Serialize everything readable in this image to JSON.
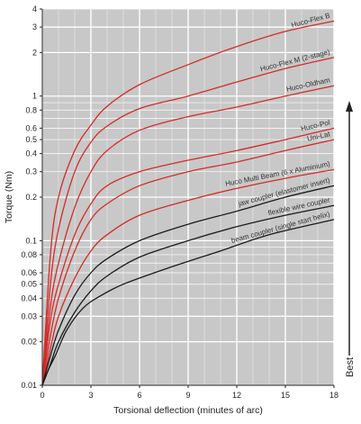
{
  "chart_data": {
    "type": "line",
    "xlabel": "Torsional deflection (minutes of arc)",
    "ylabel": "Torque (Nm)",
    "xlim": [
      0,
      18
    ],
    "ylim": [
      0.01,
      4
    ],
    "yscale": "log",
    "grid": true,
    "x_ticks": [
      0,
      3,
      6,
      9,
      12,
      15,
      18
    ],
    "y_ticks": [
      {
        "value": 0.01,
        "label": "0.01"
      },
      {
        "value": 0.02,
        "label": "0.02"
      },
      {
        "value": 0.03,
        "label": "0.03"
      },
      {
        "value": 0.04,
        "label": "0.04"
      },
      {
        "value": 0.05,
        "label": "0.05"
      },
      {
        "value": 0.06,
        "label": "0.06"
      },
      {
        "value": 0.08,
        "label": "0.08"
      },
      {
        "value": 0.1,
        "label": "0.1"
      },
      {
        "value": 0.2,
        "label": "0.2"
      },
      {
        "value": 0.3,
        "label": "0.3"
      },
      {
        "value": 0.4,
        "label": "0.4"
      },
      {
        "value": 0.5,
        "label": "0.5"
      },
      {
        "value": 0.6,
        "label": "0.6"
      },
      {
        "value": 0.8,
        "label": "0.8"
      },
      {
        "value": 1,
        "label": "1"
      },
      {
        "value": 2,
        "label": "2"
      },
      {
        "value": 3,
        "label": "3"
      },
      {
        "value": 4,
        "label": "4"
      }
    ],
    "annotation": "Best",
    "colors": {
      "red": "#d42a26",
      "black": "#1a1a1a",
      "grid": "#ffffff",
      "background": "#c8c8c8"
    },
    "series": [
      {
        "name": "Huco-Flex B",
        "color": "#d42a26",
        "x": [
          0,
          0.5,
          1,
          2,
          3,
          4,
          6,
          9,
          12,
          15,
          18
        ],
        "y": [
          0.01,
          0.08,
          0.2,
          0.42,
          0.63,
          0.85,
          1.2,
          1.65,
          2.2,
          2.8,
          3.3
        ]
      },
      {
        "name": "Huco-Flex M (2-stage)",
        "color": "#d42a26",
        "x": [
          0,
          0.5,
          1,
          2,
          3,
          4,
          6,
          9,
          12,
          15,
          18
        ],
        "y": [
          0.01,
          0.05,
          0.12,
          0.3,
          0.48,
          0.62,
          0.82,
          1.0,
          1.25,
          1.55,
          1.85
        ]
      },
      {
        "name": "Huco-Oldham",
        "color": "#d42a26",
        "x": [
          0,
          0.5,
          1,
          2,
          3,
          4,
          6,
          9,
          12,
          15,
          18
        ],
        "y": [
          0.01,
          0.035,
          0.07,
          0.17,
          0.3,
          0.42,
          0.58,
          0.72,
          0.84,
          1.0,
          1.18
        ]
      },
      {
        "name": "Huco-Pol",
        "color": "#d42a26",
        "x": [
          0,
          0.5,
          1,
          2,
          3,
          4,
          6,
          9,
          12,
          15,
          18
        ],
        "y": [
          0.01,
          0.028,
          0.05,
          0.11,
          0.18,
          0.24,
          0.3,
          0.36,
          0.42,
          0.5,
          0.6
        ]
      },
      {
        "name": "Uni-Lat",
        "color": "#d42a26",
        "x": [
          0,
          0.5,
          1,
          2,
          3,
          4,
          6,
          9,
          12,
          15,
          18
        ],
        "y": [
          0.01,
          0.022,
          0.04,
          0.085,
          0.14,
          0.18,
          0.24,
          0.3,
          0.35,
          0.42,
          0.5
        ]
      },
      {
        "name": "Huco Multi Beam (6 x Aluminium)",
        "color": "#d42a26",
        "x": [
          0,
          0.5,
          1,
          2,
          3,
          4,
          6,
          9,
          12,
          15,
          18
        ],
        "y": [
          0.01,
          0.018,
          0.03,
          0.055,
          0.085,
          0.11,
          0.15,
          0.19,
          0.23,
          0.27,
          0.31
        ]
      },
      {
        "name": "jaw coupler (elastomer insert)",
        "color": "#1a1a1a",
        "x": [
          0,
          0.5,
          1,
          2,
          3,
          4,
          6,
          9,
          12,
          15,
          18
        ],
        "y": [
          0.01,
          0.016,
          0.024,
          0.042,
          0.06,
          0.075,
          0.1,
          0.13,
          0.16,
          0.2,
          0.24
        ]
      },
      {
        "name": "flexible wire coupler",
        "color": "#1a1a1a",
        "x": [
          0,
          0.5,
          1,
          2,
          3,
          4,
          6,
          9,
          12,
          15,
          18
        ],
        "y": [
          0.01,
          0.014,
          0.02,
          0.032,
          0.045,
          0.057,
          0.077,
          0.1,
          0.125,
          0.15,
          0.175
        ]
      },
      {
        "name": "beam coupler (single start helix)",
        "color": "#1a1a1a",
        "x": [
          0,
          0.4,
          0.8,
          1.5,
          2.5,
          3.5,
          5,
          8,
          11,
          14,
          18
        ],
        "y": [
          0.01,
          0.013,
          0.016,
          0.024,
          0.034,
          0.041,
          0.05,
          0.066,
          0.085,
          0.11,
          0.14
        ]
      }
    ]
  }
}
